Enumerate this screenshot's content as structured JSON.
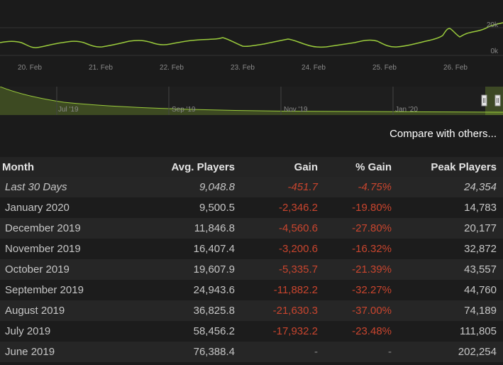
{
  "chart": {
    "x_labels": [
      "20. Feb",
      "21. Feb",
      "22. Feb",
      "23. Feb",
      "24. Feb",
      "25. Feb",
      "26. Feb"
    ],
    "y_labels": [
      "20k",
      "0k"
    ],
    "line_color": "#9acb3c"
  },
  "navigator": {
    "labels": [
      "Jul '19",
      "Sep '19",
      "Nov '19",
      "Jan '20"
    ],
    "fill_color": "#3d4a22"
  },
  "compare_link": "Compare with others...",
  "table": {
    "headers": [
      "Month",
      "Avg. Players",
      "Gain",
      "% Gain",
      "Peak Players"
    ],
    "rows": [
      {
        "month": "Last 30 Days",
        "avg": "9,048.8",
        "gain": "-451.7",
        "pct": "-4.75%",
        "peak": "24,354"
      },
      {
        "month": "January 2020",
        "avg": "9,500.5",
        "gain": "-2,346.2",
        "pct": "-19.80%",
        "peak": "14,783"
      },
      {
        "month": "December 2019",
        "avg": "11,846.8",
        "gain": "-4,560.6",
        "pct": "-27.80%",
        "peak": "20,177"
      },
      {
        "month": "November 2019",
        "avg": "16,407.4",
        "gain": "-3,200.6",
        "pct": "-16.32%",
        "peak": "32,872"
      },
      {
        "month": "October 2019",
        "avg": "19,607.9",
        "gain": "-5,335.7",
        "pct": "-21.39%",
        "peak": "43,557"
      },
      {
        "month": "September 2019",
        "avg": "24,943.6",
        "gain": "-11,882.2",
        "pct": "-32.27%",
        "peak": "44,760"
      },
      {
        "month": "August 2019",
        "avg": "36,825.8",
        "gain": "-21,630.3",
        "pct": "-37.00%",
        "peak": "74,189"
      },
      {
        "month": "July 2019",
        "avg": "58,456.2",
        "gain": "-17,932.2",
        "pct": "-23.48%",
        "peak": "111,805"
      },
      {
        "month": "June 2019",
        "avg": "76,388.4",
        "gain": "-",
        "pct": "-",
        "peak": "202,254"
      }
    ]
  }
}
